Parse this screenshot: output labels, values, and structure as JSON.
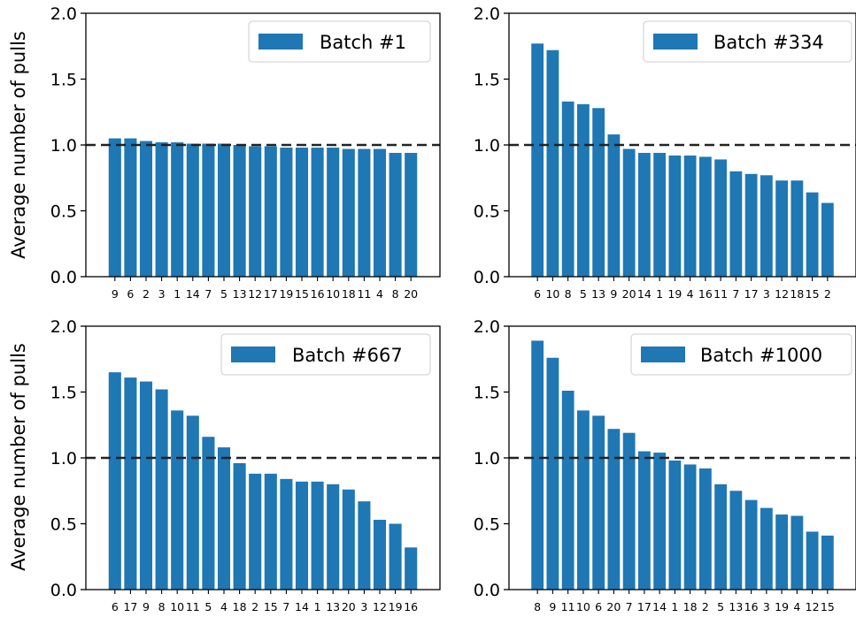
{
  "chart_data": [
    {
      "type": "bar",
      "series": [
        {
          "name": "Batch #1",
          "color": "#1f77b4"
        }
      ],
      "categories": [
        "9",
        "6",
        "2",
        "3",
        "1",
        "14",
        "7",
        "5",
        "13",
        "12",
        "17",
        "19",
        "15",
        "16",
        "10",
        "18",
        "11",
        "4",
        "8",
        "20"
      ],
      "values": [
        1.05,
        1.05,
        1.03,
        1.02,
        1.02,
        1.01,
        1.01,
        1.01,
        1.0,
        0.99,
        0.99,
        0.98,
        0.98,
        0.98,
        0.98,
        0.97,
        0.97,
        0.97,
        0.94,
        0.94
      ],
      "ylabel": "Average number of pulls",
      "ylim": [
        0,
        2.0
      ],
      "yticks": [
        "0.0",
        "0.5",
        "1.0",
        "1.5",
        "2.0"
      ],
      "reference_line": 1.0,
      "legend_position": "top-right"
    },
    {
      "type": "bar",
      "series": [
        {
          "name": "Batch #334",
          "color": "#1f77b4"
        }
      ],
      "categories": [
        "6",
        "10",
        "8",
        "5",
        "13",
        "9",
        "20",
        "14",
        "1",
        "19",
        "4",
        "16",
        "11",
        "7",
        "17",
        "3",
        "12",
        "18",
        "15",
        "2"
      ],
      "values": [
        1.77,
        1.72,
        1.33,
        1.31,
        1.28,
        1.08,
        0.97,
        0.94,
        0.94,
        0.92,
        0.92,
        0.91,
        0.89,
        0.8,
        0.78,
        0.77,
        0.73,
        0.73,
        0.64,
        0.56
      ],
      "ylabel": "",
      "ylim": [
        0,
        2.0
      ],
      "yticks": [
        "0.0",
        "0.5",
        "1.0",
        "1.5",
        "2.0"
      ],
      "reference_line": 1.0,
      "legend_position": "top-right"
    },
    {
      "type": "bar",
      "series": [
        {
          "name": "Batch #667",
          "color": "#1f77b4"
        }
      ],
      "categories": [
        "6",
        "17",
        "9",
        "8",
        "10",
        "11",
        "5",
        "4",
        "18",
        "2",
        "15",
        "7",
        "14",
        "1",
        "13",
        "20",
        "3",
        "12",
        "19",
        "16"
      ],
      "values": [
        1.65,
        1.61,
        1.58,
        1.52,
        1.36,
        1.32,
        1.16,
        1.08,
        0.96,
        0.88,
        0.88,
        0.84,
        0.82,
        0.82,
        0.8,
        0.76,
        0.67,
        0.53,
        0.5,
        0.32
      ],
      "ylabel": "Average number of pulls",
      "ylim": [
        0,
        2.0
      ],
      "yticks": [
        "0.0",
        "0.5",
        "1.0",
        "1.5",
        "2.0"
      ],
      "reference_line": 1.0,
      "legend_position": "top-right"
    },
    {
      "type": "bar",
      "series": [
        {
          "name": "Batch #1000",
          "color": "#1f77b4"
        }
      ],
      "categories": [
        "8",
        "9",
        "11",
        "10",
        "6",
        "20",
        "7",
        "17",
        "14",
        "1",
        "18",
        "2",
        "5",
        "13",
        "16",
        "3",
        "19",
        "4",
        "12",
        "15"
      ],
      "values": [
        1.89,
        1.76,
        1.51,
        1.36,
        1.32,
        1.22,
        1.19,
        1.05,
        1.04,
        0.98,
        0.95,
        0.92,
        0.8,
        0.75,
        0.68,
        0.62,
        0.57,
        0.56,
        0.44,
        0.41
      ],
      "ylabel": "",
      "ylim": [
        0,
        2.0
      ],
      "yticks": [
        "0.0",
        "0.5",
        "1.0",
        "1.5",
        "2.0"
      ],
      "reference_line": 1.0,
      "legend_position": "top-right"
    }
  ]
}
